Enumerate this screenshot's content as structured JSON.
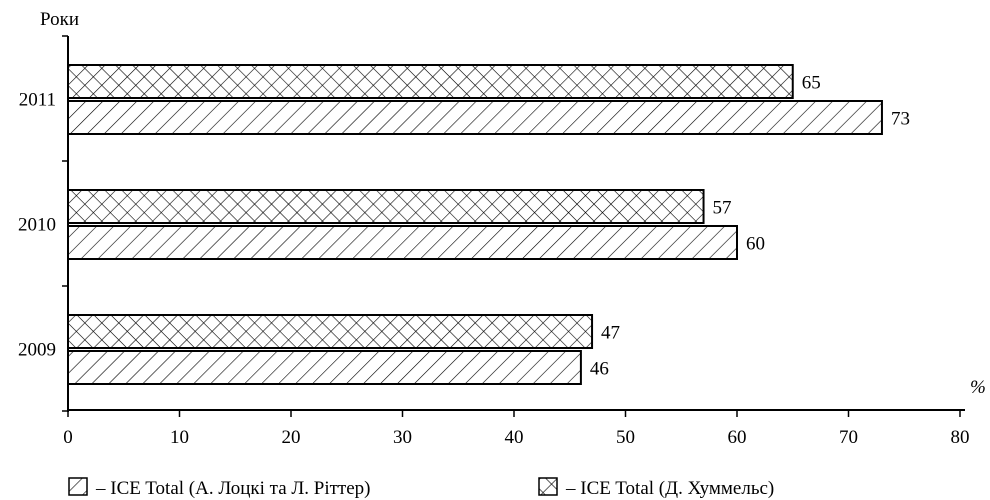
{
  "chart_data": {
    "type": "bar",
    "orientation": "horizontal",
    "categories": [
      "2009",
      "2010",
      "2011"
    ],
    "series": [
      {
        "name": "– ICE Total (А. Лоцкі та Л. Ріттер)",
        "pattern": "diagonal-hatch",
        "values": [
          46,
          60,
          73
        ]
      },
      {
        "name": "– ICE Total (Д. Хуммельс)",
        "pattern": "cross-hatch",
        "values": [
          47,
          57,
          65
        ]
      }
    ],
    "xlim": [
      0,
      80
    ],
    "xticks": [
      0,
      10,
      20,
      30,
      40,
      50,
      60,
      70,
      80
    ],
    "xlabel": "%",
    "ylabel": "Роки",
    "grid": false,
    "legend_position": "bottom"
  }
}
